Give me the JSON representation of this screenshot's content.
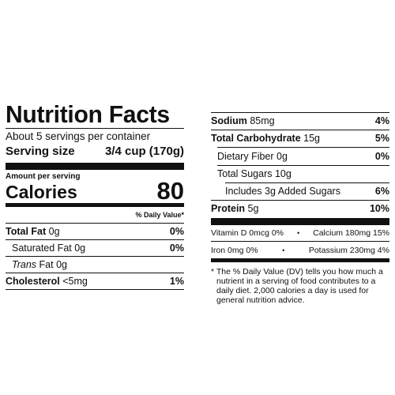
{
  "label": {
    "title": "Nutrition Facts",
    "servings_per_container": "About 5 servings per container",
    "serving_size_label": "Serving size",
    "serving_size_value": "3/4 cup (170g)",
    "amount_per_serving": "Amount per serving",
    "calories_label": "Calories",
    "calories_value": "80",
    "daily_value_header": "% Daily Value*"
  },
  "left_nutrients": {
    "total_fat": {
      "name": "Total Fat",
      "amount": "0g",
      "dv": "0%"
    },
    "saturated_fat": {
      "name": "Saturated Fat",
      "amount": "0g",
      "dv": "0%"
    },
    "trans_fat": {
      "name_italic": "Trans",
      "name": "Fat",
      "amount": "0g"
    },
    "cholesterol": {
      "name": "Cholesterol",
      "amount": "<5mg",
      "dv": "1%"
    }
  },
  "right_nutrients": {
    "sodium": {
      "name": "Sodium",
      "amount": "85mg",
      "dv": "4%"
    },
    "total_carbohydrate": {
      "name": "Total Carbohydrate",
      "amount": "15g",
      "dv": "5%"
    },
    "dietary_fiber": {
      "name": "Dietary Fiber",
      "amount": "0g",
      "dv": "0%"
    },
    "total_sugars": {
      "name": "Total Sugars",
      "amount": "10g"
    },
    "added_sugars": {
      "text": "Includes 3g Added Sugars",
      "dv": "6%"
    },
    "protein": {
      "name": "Protein",
      "amount": "5g",
      "dv": "10%"
    }
  },
  "vitamins": {
    "vitamin_d": "Vitamin D 0mcg 0%",
    "calcium": "Calcium 180mg 15%",
    "iron": "Iron 0mg 0%",
    "potassium": "Potassium 230mg 4%",
    "separator": "•"
  },
  "footnote": "* The % Daily Value (DV) tells you how much a nutrient in a serving of food contributes to a daily diet. 2,000 calories a day is used for general nutrition advice."
}
